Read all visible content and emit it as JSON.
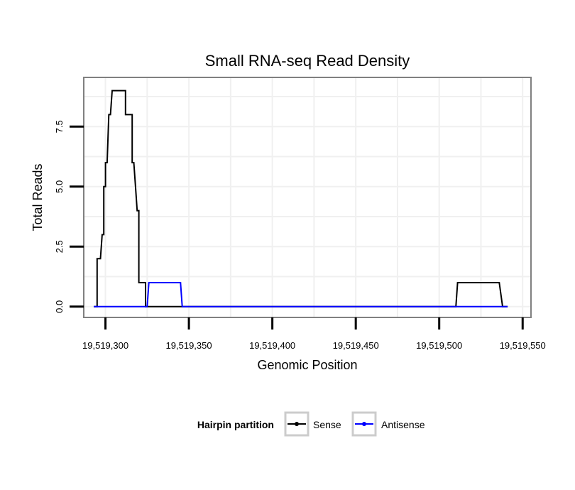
{
  "chart_data": {
    "type": "line",
    "title": "Small RNA-seq Read Density",
    "xlabel": "Genomic Position",
    "ylabel": "Total Reads",
    "xlim": [
      19519287,
      19519555
    ],
    "ylim": [
      -0.45,
      9.55
    ],
    "xticks": [
      19519300,
      19519350,
      19519400,
      19519450,
      19519500,
      19519550
    ],
    "xtick_labels": [
      "19,519,300",
      "19,519,350",
      "19,519,400",
      "19,519,450",
      "19,519,500",
      "19,519,550"
    ],
    "yticks": [
      0,
      2.5,
      5,
      7.5
    ],
    "ytick_labels": [
      "0.0",
      "2.5",
      "5.0",
      "7.5"
    ],
    "grid": true,
    "legend": {
      "title": "Hairpin partition",
      "position": "bottom",
      "entries": [
        "Sense",
        "Antisense"
      ]
    },
    "series": [
      {
        "name": "Sense",
        "color": "#000000",
        "x": [
          19519293,
          19519295,
          19519295,
          19519296,
          19519297,
          19519297,
          19519298,
          19519299,
          19519299,
          19519300,
          19519300,
          19519301,
          19519302,
          19519303,
          19519304,
          19519304,
          19519305,
          19519306,
          19519306,
          19519307,
          19519307,
          19519312,
          19519312,
          19519313,
          19519314,
          19519316,
          19519316,
          19519317,
          19519318,
          19519318,
          19519319,
          19519320,
          19519320,
          19519321,
          19519322,
          19519322,
          19519324,
          19519324,
          19519346,
          19519400,
          19519450,
          19519510,
          19519511,
          19519536,
          19519538,
          19519541
        ],
        "y": [
          0,
          0,
          2,
          2,
          2,
          2,
          3,
          3,
          5,
          5,
          6,
          6,
          8,
          8,
          9,
          9,
          9,
          9,
          9,
          9,
          9,
          9,
          8,
          8,
          8,
          8,
          6,
          6,
          5,
          5,
          4,
          4,
          1,
          1,
          1,
          1,
          1,
          0,
          0,
          0,
          0,
          0,
          1,
          1,
          0,
          0
        ]
      },
      {
        "name": "Antisense",
        "color": "#0000ff",
        "x": [
          19519293,
          19519300,
          19519325,
          19519326,
          19519345,
          19519346,
          19519400,
          19519500,
          19519537,
          19519541
        ],
        "y": [
          0,
          0,
          0,
          1,
          1,
          0,
          0,
          0,
          0,
          0
        ]
      }
    ]
  }
}
